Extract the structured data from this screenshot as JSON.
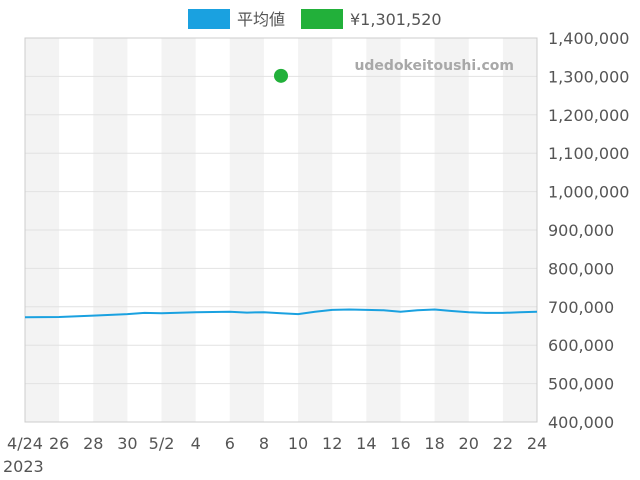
{
  "chart_data": {
    "type": "line",
    "watermark": "udedokeitoushi.com",
    "x_year_label": "2023",
    "x_tick_labels": [
      "4/24",
      "26",
      "28",
      "30",
      "5/2",
      "4",
      "6",
      "8",
      "10",
      "12",
      "14",
      "16",
      "18",
      "20",
      "22",
      "24"
    ],
    "y_tick_labels": [
      "400,000",
      "500,000",
      "600,000",
      "700,000",
      "800,000",
      "900,000",
      "1,000,000",
      "1,100,000",
      "1,200,000",
      "1,300,000",
      "1,400,000"
    ],
    "ylim": [
      400000,
      1400000
    ],
    "xlim": [
      "2023-04-24",
      "2023-05-24"
    ],
    "grid": true,
    "legend_position": "top",
    "series": [
      {
        "name": "平均値",
        "color": "#1aa1e0",
        "points": [
          [
            "2023-04-24",
            673000
          ],
          [
            "2023-04-26",
            673500
          ],
          [
            "2023-04-28",
            677000
          ],
          [
            "2023-04-30",
            681000
          ],
          [
            "2023-05-01",
            684000
          ],
          [
            "2023-05-02",
            683000
          ],
          [
            "2023-05-04",
            686000
          ],
          [
            "2023-05-06",
            687000
          ],
          [
            "2023-05-07",
            685000
          ],
          [
            "2023-05-08",
            686000
          ],
          [
            "2023-05-09",
            683000
          ],
          [
            "2023-05-10",
            681000
          ],
          [
            "2023-05-11",
            687000
          ],
          [
            "2023-05-12",
            692000
          ],
          [
            "2023-05-13",
            693000
          ],
          [
            "2023-05-14",
            692000
          ],
          [
            "2023-05-15",
            691000
          ],
          [
            "2023-05-16",
            687000
          ],
          [
            "2023-05-17",
            691000
          ],
          [
            "2023-05-18",
            693000
          ],
          [
            "2023-05-19",
            689000
          ],
          [
            "2023-05-20",
            686000
          ],
          [
            "2023-05-21",
            684000
          ],
          [
            "2023-05-22",
            684000
          ],
          [
            "2023-05-23",
            686000
          ],
          [
            "2023-05-24",
            687000
          ]
        ]
      },
      {
        "name": "¥1,301,520",
        "color": "#22b03a",
        "points": [
          [
            "2023-05-09",
            1301520
          ]
        ]
      }
    ]
  }
}
